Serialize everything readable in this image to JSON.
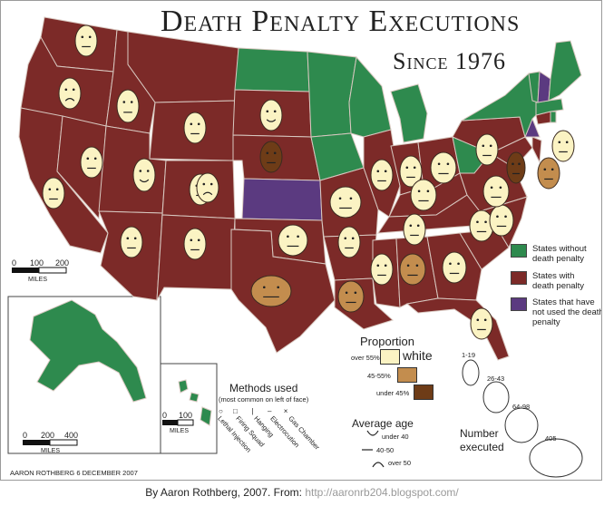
{
  "title": "Death Penalty Executions",
  "subtitle": "Since 1976",
  "legend_status": [
    {
      "label": "States without death penalty",
      "color": "#2e8a4e"
    },
    {
      "label": "States with death penalty",
      "color": "#7c2a28"
    },
    {
      "label": "States that have not used the death penalty",
      "color": "#5b3a80"
    }
  ],
  "proportion": {
    "title": "Proportion",
    "items": [
      {
        "label": "over 55%",
        "value_label": "white",
        "color": "#fbf3c3"
      },
      {
        "label": "45-55%",
        "color": "#c38d4e"
      },
      {
        "label": "under 45%",
        "color": "#6e3c17"
      }
    ]
  },
  "methods": {
    "title": "Methods used",
    "note": "(most common on left of face)",
    "items": [
      "Lethal Injection",
      "Firing Squad",
      "Hanging",
      "Electrocution",
      "Gas Chamber"
    ]
  },
  "average_age": {
    "title": "Average age",
    "items": [
      "under 40",
      "40-50",
      "over 50"
    ]
  },
  "number_executed": {
    "title": "Number executed",
    "items": [
      "1-19",
      "26-43",
      "64-98",
      "405"
    ]
  },
  "scale_main": {
    "ticks": [
      "0",
      "100",
      "200"
    ],
    "unit": "MILES"
  },
  "scale_alaska": {
    "ticks": [
      "0",
      "200",
      "400"
    ],
    "unit": "MILES"
  },
  "scale_hawaii": {
    "ticks": [
      "0",
      "100"
    ],
    "unit": "MILES"
  },
  "credit": "Aaron Rothberg  6 December 2007",
  "caption": {
    "prefix": "By Aaron Rothberg, 2007. From: ",
    "url": "http://aaronrb204.blogspot.com/"
  },
  "colors": {
    "dp": "#7c2a28",
    "nodp": "#2e8a4e",
    "unused": "#5b3a80",
    "border": "#d8c8c0"
  },
  "faces": [
    {
      "state": "WA",
      "shade": "light",
      "eyes": "dot",
      "mouth": "flat"
    },
    {
      "state": "OR",
      "shade": "light",
      "eyes": "dot",
      "mouth": "frown"
    },
    {
      "state": "ID",
      "shade": "light",
      "eyes": "dot",
      "mouth": "flat"
    },
    {
      "state": "MT",
      "shade": "light",
      "eyes": "dot",
      "mouth": "flat"
    },
    {
      "state": "WY",
      "shade": "light",
      "eyes": "dot",
      "mouth": "flat"
    },
    {
      "state": "SD",
      "shade": "light",
      "eyes": "dot",
      "mouth": "smile"
    },
    {
      "state": "NE",
      "shade": "dark",
      "eyes": "dot",
      "mouth": "flat"
    },
    {
      "state": "NV",
      "shade": "light",
      "eyes": "dot",
      "mouth": "flat"
    },
    {
      "state": "CA",
      "shade": "light",
      "eyes": "dot",
      "mouth": "flat"
    },
    {
      "state": "UT",
      "shade": "light",
      "eyes": "dot",
      "mouth": "smile"
    },
    {
      "state": "CO",
      "shade": "light",
      "eyes": "dot",
      "mouth": "frown"
    },
    {
      "state": "AZ",
      "shade": "light",
      "eyes": "dot",
      "mouth": "flat"
    },
    {
      "state": "NM",
      "shade": "light",
      "eyes": "dot",
      "mouth": "flat"
    },
    {
      "state": "OK",
      "shade": "light",
      "eyes": "dot",
      "mouth": "flat"
    },
    {
      "state": "TX",
      "shade": "mid",
      "eyes": "dot",
      "mouth": "flat"
    },
    {
      "state": "MO",
      "shade": "light",
      "eyes": "dot",
      "mouth": "flat"
    },
    {
      "state": "AR",
      "shade": "light",
      "eyes": "dot",
      "mouth": "flat"
    },
    {
      "state": "LA",
      "shade": "mid",
      "eyes": "dot",
      "mouth": "flat"
    },
    {
      "state": "IL",
      "shade": "light",
      "eyes": "dot",
      "mouth": "flat"
    },
    {
      "state": "IN",
      "shade": "light",
      "eyes": "dot",
      "mouth": "flat"
    },
    {
      "state": "OH",
      "shade": "light",
      "eyes": "dot",
      "mouth": "flat"
    },
    {
      "state": "KY",
      "shade": "light",
      "eyes": "dot",
      "mouth": "flat"
    },
    {
      "state": "TN",
      "shade": "light",
      "eyes": "dot",
      "mouth": "flat"
    },
    {
      "state": "MS",
      "shade": "light",
      "eyes": "dot",
      "mouth": "flat"
    },
    {
      "state": "AL",
      "shade": "mid",
      "eyes": "dot",
      "mouth": "flat"
    },
    {
      "state": "GA",
      "shade": "light",
      "eyes": "dot",
      "mouth": "flat"
    },
    {
      "state": "SC",
      "shade": "light",
      "eyes": "dot",
      "mouth": "flat"
    },
    {
      "state": "NC",
      "shade": "light",
      "eyes": "dot",
      "mouth": "flat"
    },
    {
      "state": "VA",
      "shade": "light",
      "eyes": "dot",
      "mouth": "flat"
    },
    {
      "state": "MD",
      "shade": "dark",
      "eyes": "dot",
      "mouth": "flat"
    },
    {
      "state": "DE",
      "shade": "mid",
      "eyes": "dot",
      "mouth": "flat"
    },
    {
      "state": "PA",
      "shade": "light",
      "eyes": "dot",
      "mouth": "flat"
    },
    {
      "state": "CT",
      "shade": "light",
      "eyes": "dot",
      "mouth": "flat"
    },
    {
      "state": "FL",
      "shade": "light",
      "eyes": "dot",
      "mouth": "flat"
    }
  ]
}
